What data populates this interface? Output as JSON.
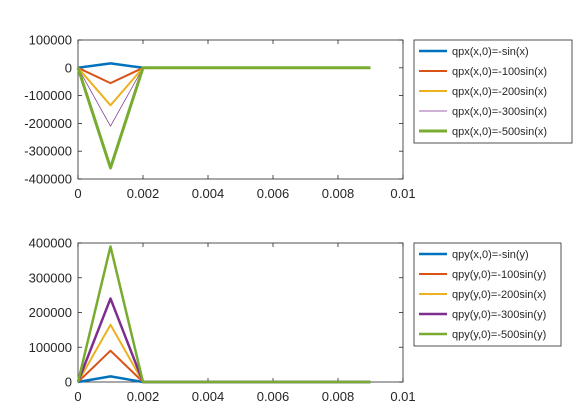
{
  "chart_data": [
    {
      "type": "line",
      "xlim": [
        0,
        0.01
      ],
      "ylim": [
        -400000,
        100000
      ],
      "x_ticks": [
        "0",
        "0.002",
        "0.004",
        "0.006",
        "0.008",
        "0.01"
      ],
      "y_ticks": [
        "-400000",
        "-300000",
        "-200000",
        "-100000",
        "0",
        "100000"
      ],
      "x": [
        0,
        0.001,
        0.002,
        0.003,
        0.004,
        0.005,
        0.006,
        0.007,
        0.008,
        0.009
      ],
      "grid": false,
      "legend_position": "right",
      "series": [
        {
          "name": "qpx(x,0)=-sin(x)",
          "color": "#0072bd",
          "width": 2.5,
          "values": [
            0,
            16000,
            0,
            0,
            0,
            0,
            0,
            0,
            0,
            0
          ]
        },
        {
          "name": "qpx(x,0)=-100sin(x)",
          "color": "#d95319",
          "width": 2,
          "values": [
            0,
            -55000,
            0,
            0,
            0,
            0,
            0,
            0,
            0,
            0
          ]
        },
        {
          "name": "qpx(x,0)=-200sin(x)",
          "color": "#edb120",
          "width": 2,
          "values": [
            0,
            -135000,
            0,
            0,
            0,
            0,
            0,
            0,
            0,
            0
          ]
        },
        {
          "name": "qpx(x,0)=-300sin(x)",
          "color": "#7e2f8e",
          "width": 0.7,
          "values": [
            0,
            -210000,
            0,
            0,
            0,
            0,
            0,
            0,
            0,
            0
          ]
        },
        {
          "name": "qpx(x,0)=-500sin(x)",
          "color": "#77ac30",
          "width": 3,
          "values": [
            0,
            -360000,
            0,
            0,
            0,
            0,
            0,
            0,
            0,
            0
          ]
        }
      ]
    },
    {
      "type": "line",
      "xlim": [
        0,
        0.01
      ],
      "ylim": [
        0,
        400000
      ],
      "x_ticks": [
        "0",
        "0.002",
        "0.004",
        "0.006",
        "0.008",
        "0.01"
      ],
      "y_ticks": [
        "0",
        "100000",
        "200000",
        "300000",
        "400000"
      ],
      "x": [
        0,
        0.001,
        0.002,
        0.003,
        0.004,
        0.005,
        0.006,
        0.007,
        0.008,
        0.009
      ],
      "grid": false,
      "legend_position": "right",
      "series": [
        {
          "name": "qpy(x,0)=-sin(y)",
          "color": "#0072bd",
          "width": 2.5,
          "values": [
            0,
            16000,
            0,
            0,
            0,
            0,
            0,
            0,
            0,
            0
          ]
        },
        {
          "name": "qpy(y,0)=-100sin(y)",
          "color": "#d95319",
          "width": 2,
          "values": [
            0,
            90000,
            0,
            0,
            0,
            0,
            0,
            0,
            0,
            0
          ]
        },
        {
          "name": "qpy(y,0)=-200sin(x)",
          "color": "#edb120",
          "width": 2,
          "values": [
            0,
            165000,
            0,
            0,
            0,
            0,
            0,
            0,
            0,
            0
          ]
        },
        {
          "name": "qpy(y,0)=-300sin(y)",
          "color": "#7e2f8e",
          "width": 2.5,
          "values": [
            0,
            240000,
            0,
            0,
            0,
            0,
            0,
            0,
            0,
            0
          ]
        },
        {
          "name": "qpy(y,0)=-500sin(y)",
          "color": "#77ac30",
          "width": 2.5,
          "values": [
            0,
            390000,
            0,
            0,
            0,
            0,
            0,
            0,
            0,
            0
          ]
        }
      ]
    }
  ]
}
